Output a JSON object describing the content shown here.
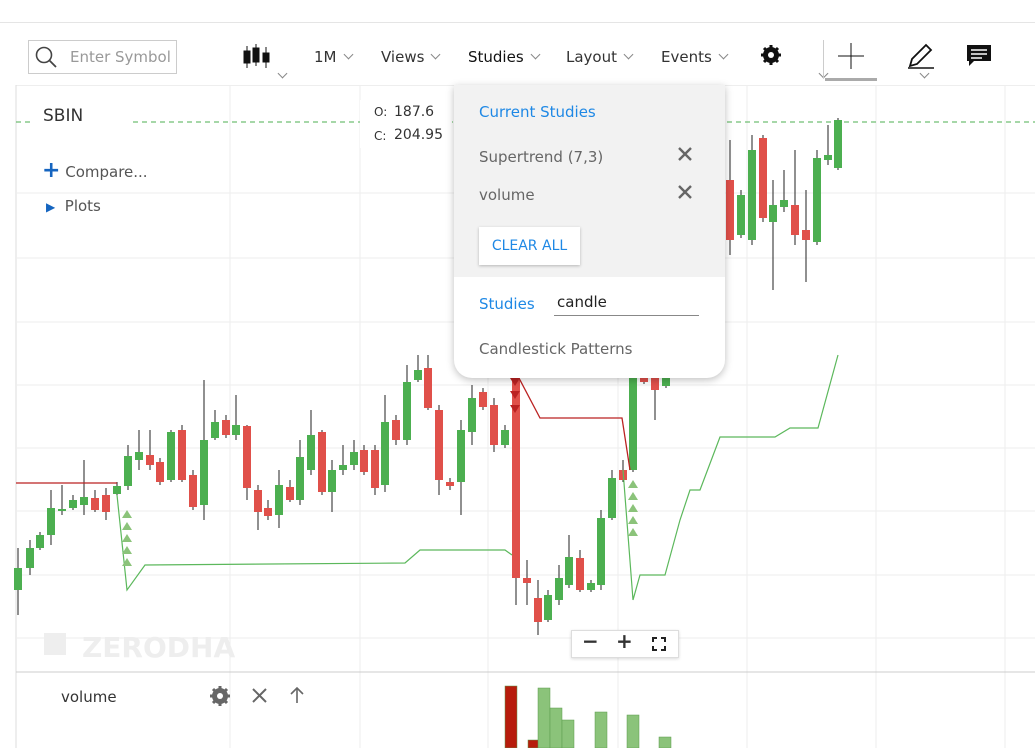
{
  "toolbar": {
    "search_placeholder": "Enter Symbol",
    "interval": "1M",
    "menus": [
      "Views",
      "Studies",
      "Layout",
      "Events"
    ]
  },
  "chart": {
    "symbol": "SBIN",
    "ohlc": {
      "open_label": "O:",
      "open": 187.6,
      "close_label": "C:",
      "close": 204.95
    },
    "compare": "Compare...",
    "plots": "Plots",
    "watermark": "ZERODHA"
  },
  "volume_panel": {
    "label": "volume"
  },
  "studies_menu": {
    "current_title": "Current Studies",
    "current": [
      "Supertrend (7,3)",
      "volume"
    ],
    "clear_all": "CLEAR ALL",
    "search_label": "Studies",
    "search_value": "candle",
    "results": [
      "Candlestick Patterns"
    ]
  }
}
